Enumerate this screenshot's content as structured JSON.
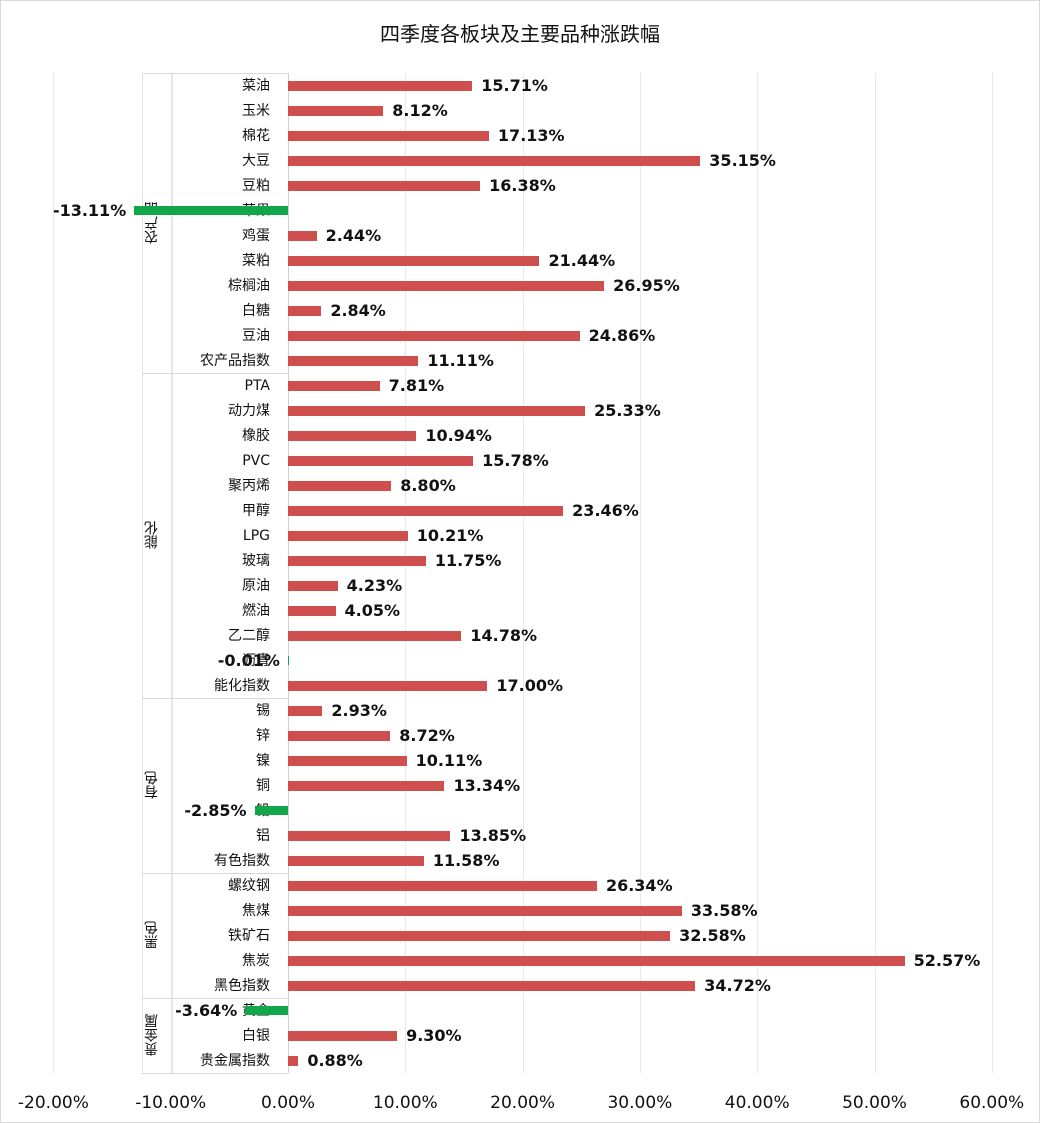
{
  "title": "四季度各板块及主要品种涨跌幅",
  "colors": {
    "positive": "#cf4e4e",
    "negative": "#12a64b"
  },
  "chart_data": {
    "type": "bar",
    "orientation": "horizontal",
    "title": "四季度各板块及主要品种涨跌幅",
    "xlabel": "",
    "ylabel": "",
    "xlim": [
      -20,
      60
    ],
    "x_ticks": [
      "-20.00%",
      "-10.00%",
      "0.00%",
      "10.00%",
      "20.00%",
      "30.00%",
      "40.00%",
      "50.00%",
      "60.00%"
    ],
    "grid": "vertical",
    "legend": "none",
    "groups": [
      {
        "name": "农产品",
        "items": [
          {
            "name": "菜油",
            "value": 15.71,
            "label": "15.71%"
          },
          {
            "name": "玉米",
            "value": 8.12,
            "label": "8.12%"
          },
          {
            "name": "棉花",
            "value": 17.13,
            "label": "17.13%"
          },
          {
            "name": "大豆",
            "value": 35.15,
            "label": "35.15%"
          },
          {
            "name": "豆粕",
            "value": 16.38,
            "label": "16.38%"
          },
          {
            "name": "苹果",
            "value": -13.11,
            "label": "-13.11%"
          },
          {
            "name": "鸡蛋",
            "value": 2.44,
            "label": "2.44%"
          },
          {
            "name": "菜粕",
            "value": 21.44,
            "label": "21.44%"
          },
          {
            "name": "棕榈油",
            "value": 26.95,
            "label": "26.95%"
          },
          {
            "name": "白糖",
            "value": 2.84,
            "label": "2.84%"
          },
          {
            "name": "豆油",
            "value": 24.86,
            "label": "24.86%"
          },
          {
            "name": "农产品指数",
            "value": 11.11,
            "label": "11.11%"
          }
        ]
      },
      {
        "name": "能化",
        "items": [
          {
            "name": "PTA",
            "value": 7.81,
            "label": "7.81%"
          },
          {
            "name": "动力煤",
            "value": 25.33,
            "label": "25.33%"
          },
          {
            "name": "橡胶",
            "value": 10.94,
            "label": "10.94%"
          },
          {
            "name": "PVC",
            "value": 15.78,
            "label": "15.78%"
          },
          {
            "name": "聚丙烯",
            "value": 8.8,
            "label": "8.80%"
          },
          {
            "name": "甲醇",
            "value": 23.46,
            "label": "23.46%"
          },
          {
            "name": "LPG",
            "value": 10.21,
            "label": "10.21%"
          },
          {
            "name": "玻璃",
            "value": 11.75,
            "label": "11.75%"
          },
          {
            "name": "原油",
            "value": 4.23,
            "label": "4.23%"
          },
          {
            "name": "燃油",
            "value": 4.05,
            "label": "4.05%"
          },
          {
            "name": "乙二醇",
            "value": 14.78,
            "label": "14.78%"
          },
          {
            "name": "沥青",
            "value": -0.01,
            "label": "-0.01%"
          },
          {
            "name": "能化指数",
            "value": 17.0,
            "label": "17.00%"
          }
        ]
      },
      {
        "name": "有色",
        "items": [
          {
            "name": "锡",
            "value": 2.93,
            "label": "2.93%"
          },
          {
            "name": "锌",
            "value": 8.72,
            "label": "8.72%"
          },
          {
            "name": "镍",
            "value": 10.11,
            "label": "10.11%"
          },
          {
            "name": "铜",
            "value": 13.34,
            "label": "13.34%"
          },
          {
            "name": "铅",
            "value": -2.85,
            "label": "-2.85%"
          },
          {
            "name": "铝",
            "value": 13.85,
            "label": "13.85%"
          },
          {
            "name": "有色指数",
            "value": 11.58,
            "label": "11.58%"
          }
        ]
      },
      {
        "name": "黑色",
        "items": [
          {
            "name": "螺纹钢",
            "value": 26.34,
            "label": "26.34%"
          },
          {
            "name": "焦煤",
            "value": 33.58,
            "label": "33.58%"
          },
          {
            "name": "铁矿石",
            "value": 32.58,
            "label": "32.58%"
          },
          {
            "name": "焦炭",
            "value": 52.57,
            "label": "52.57%"
          },
          {
            "name": "黑色指数",
            "value": 34.72,
            "label": "34.72%"
          }
        ]
      },
      {
        "name": "贵金属",
        "items": [
          {
            "name": "黄金",
            "value": -3.64,
            "label": "-3.64%"
          },
          {
            "name": "白银",
            "value": 9.3,
            "label": "9.30%"
          },
          {
            "name": "贵金属指数",
            "value": 0.88,
            "label": "0.88%"
          }
        ]
      }
    ]
  }
}
